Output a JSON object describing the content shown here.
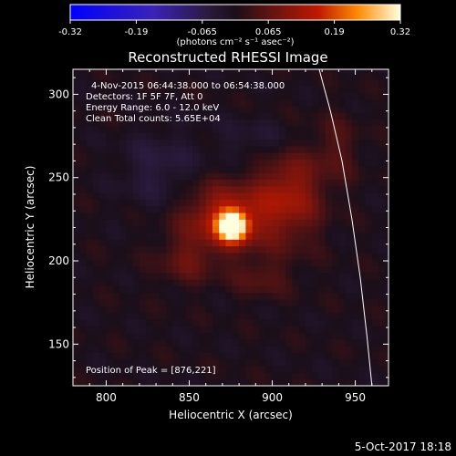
{
  "chart_data": {
    "type": "heatmap",
    "title": "Reconstructed RHESSI Image",
    "xlabel": "Heliocentric X (arcsec)",
    "ylabel": "Heliocentric Y (arcsec)",
    "xlim": [
      780,
      970
    ],
    "ylim": [
      125,
      315
    ],
    "x_ticks": [
      800,
      850,
      900,
      950
    ],
    "y_ticks": [
      150,
      200,
      250,
      300
    ],
    "colorbar": {
      "ticks": [
        "-0.32",
        "-0.19",
        "-0.065",
        "0.065",
        "0.19",
        "0.32"
      ],
      "range": [
        -0.32,
        0.32
      ],
      "units": "(photons cm⁻² s⁻¹ asec⁻²)"
    },
    "annotations": [
      "4-Nov-2015 06:44:38.000 to 06:54:38.000",
      "Detectors: 1F 5F 7F, Att 0",
      "Energy Range: 6.0 - 12.0 keV",
      "Clean    Total counts: 5.65E+04"
    ],
    "peak_label": "Position of Peak = [876,221]",
    "peak_position": [
      876,
      221
    ],
    "limb_curve": [
      [
        928,
        316
      ],
      [
        935,
        290
      ],
      [
        942,
        260
      ],
      [
        948,
        225
      ],
      [
        953,
        190
      ],
      [
        957,
        155
      ],
      [
        960,
        125
      ]
    ],
    "sources": [
      {
        "x": 876,
        "y": 221,
        "amp": 0.32,
        "sx": 6,
        "sy": 6
      },
      {
        "x": 872,
        "y": 226,
        "amp": 0.15,
        "sx": 18,
        "sy": 14
      },
      {
        "x": 910,
        "y": 240,
        "amp": 0.12,
        "sx": 14,
        "sy": 20
      },
      {
        "x": 848,
        "y": 200,
        "amp": 0.06,
        "sx": 12,
        "sy": 10
      },
      {
        "x": 938,
        "y": 268,
        "amp": 0.05,
        "sx": 10,
        "sy": 14
      },
      {
        "x": 893,
        "y": 190,
        "amp": 0.05,
        "sx": 12,
        "sy": 8
      },
      {
        "x": 832,
        "y": 255,
        "amp": -0.05,
        "sx": 16,
        "sy": 16
      },
      {
        "x": 895,
        "y": 272,
        "amp": -0.04,
        "sx": 20,
        "sy": 10
      }
    ]
  },
  "footer": {
    "date_stamp": "5-Oct-2017 18:18"
  }
}
